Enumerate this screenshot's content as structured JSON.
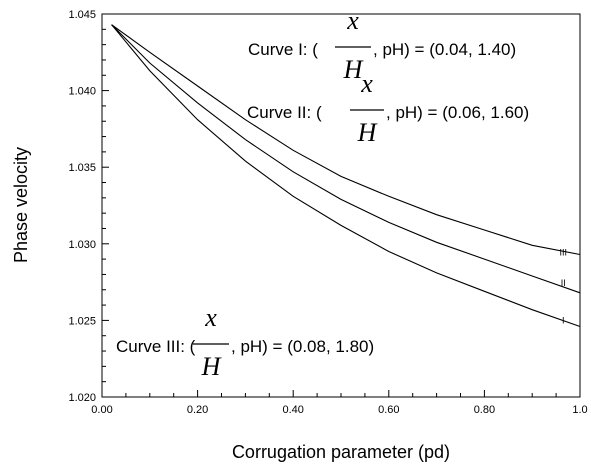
{
  "chart_data": {
    "type": "line",
    "xlabel": "Corrugation parameter (pd)",
    "ylabel": "Phase velocity",
    "xlim": [
      0,
      1.0
    ],
    "ylim": [
      1.02,
      1.045
    ],
    "x_ticks": [
      0,
      0.2,
      0.4,
      0.6,
      0.8,
      1.0
    ],
    "x_tick_labels": [
      "0.00",
      "0.20",
      "0.40",
      "0.60",
      "0.80",
      "1.0"
    ],
    "y_ticks": [
      1.02,
      1.025,
      1.03,
      1.035,
      1.04,
      1.045
    ],
    "y_tick_labels": [
      "1.020",
      "1.025",
      "1.030",
      "1.035",
      "1.040",
      "1.045"
    ],
    "grid": false,
    "series": [
      {
        "name": "I",
        "x": [
          0.02,
          0.1,
          0.2,
          0.3,
          0.4,
          0.5,
          0.6,
          0.7,
          0.8,
          0.9,
          1.0
        ],
        "y": [
          1.0443,
          1.0413,
          1.0381,
          1.0354,
          1.0331,
          1.0312,
          1.0295,
          1.0281,
          1.0269,
          1.0257,
          1.0246
        ]
      },
      {
        "name": "II",
        "x": [
          0.02,
          0.1,
          0.2,
          0.3,
          0.4,
          0.5,
          0.6,
          0.7,
          0.8,
          0.9,
          1.0
        ],
        "y": [
          1.0443,
          1.0418,
          1.0392,
          1.0368,
          1.0347,
          1.0329,
          1.0314,
          1.0301,
          1.029,
          1.0279,
          1.0268
        ]
      },
      {
        "name": "III",
        "x": [
          0.02,
          0.1,
          0.2,
          0.3,
          0.4,
          0.5,
          0.6,
          0.7,
          0.8,
          0.9,
          1.0
        ],
        "y": [
          1.0443,
          1.0425,
          1.0403,
          1.0381,
          1.0361,
          1.0344,
          1.0331,
          1.0319,
          1.0309,
          1.0299,
          1.0293
        ]
      }
    ],
    "curve_end_labels": [
      "I",
      "II",
      "III"
    ],
    "annotations": [
      {
        "name": "curve-I-annotation",
        "prefix": "Curve I: (",
        "frac_num": "x",
        "frac_den": "H",
        "suffix": ", pH) = (0.04, 1.40)"
      },
      {
        "name": "curve-II-annotation",
        "prefix": "Curve II: (",
        "frac_num": "x",
        "frac_den": "H",
        "suffix": ", pH) = (0.06, 1.60)"
      },
      {
        "name": "curve-III-annotation",
        "prefix": "Curve III: (",
        "frac_num": "x",
        "frac_den": "H",
        "suffix": ", pH) = (0.08, 1.80)"
      }
    ]
  }
}
